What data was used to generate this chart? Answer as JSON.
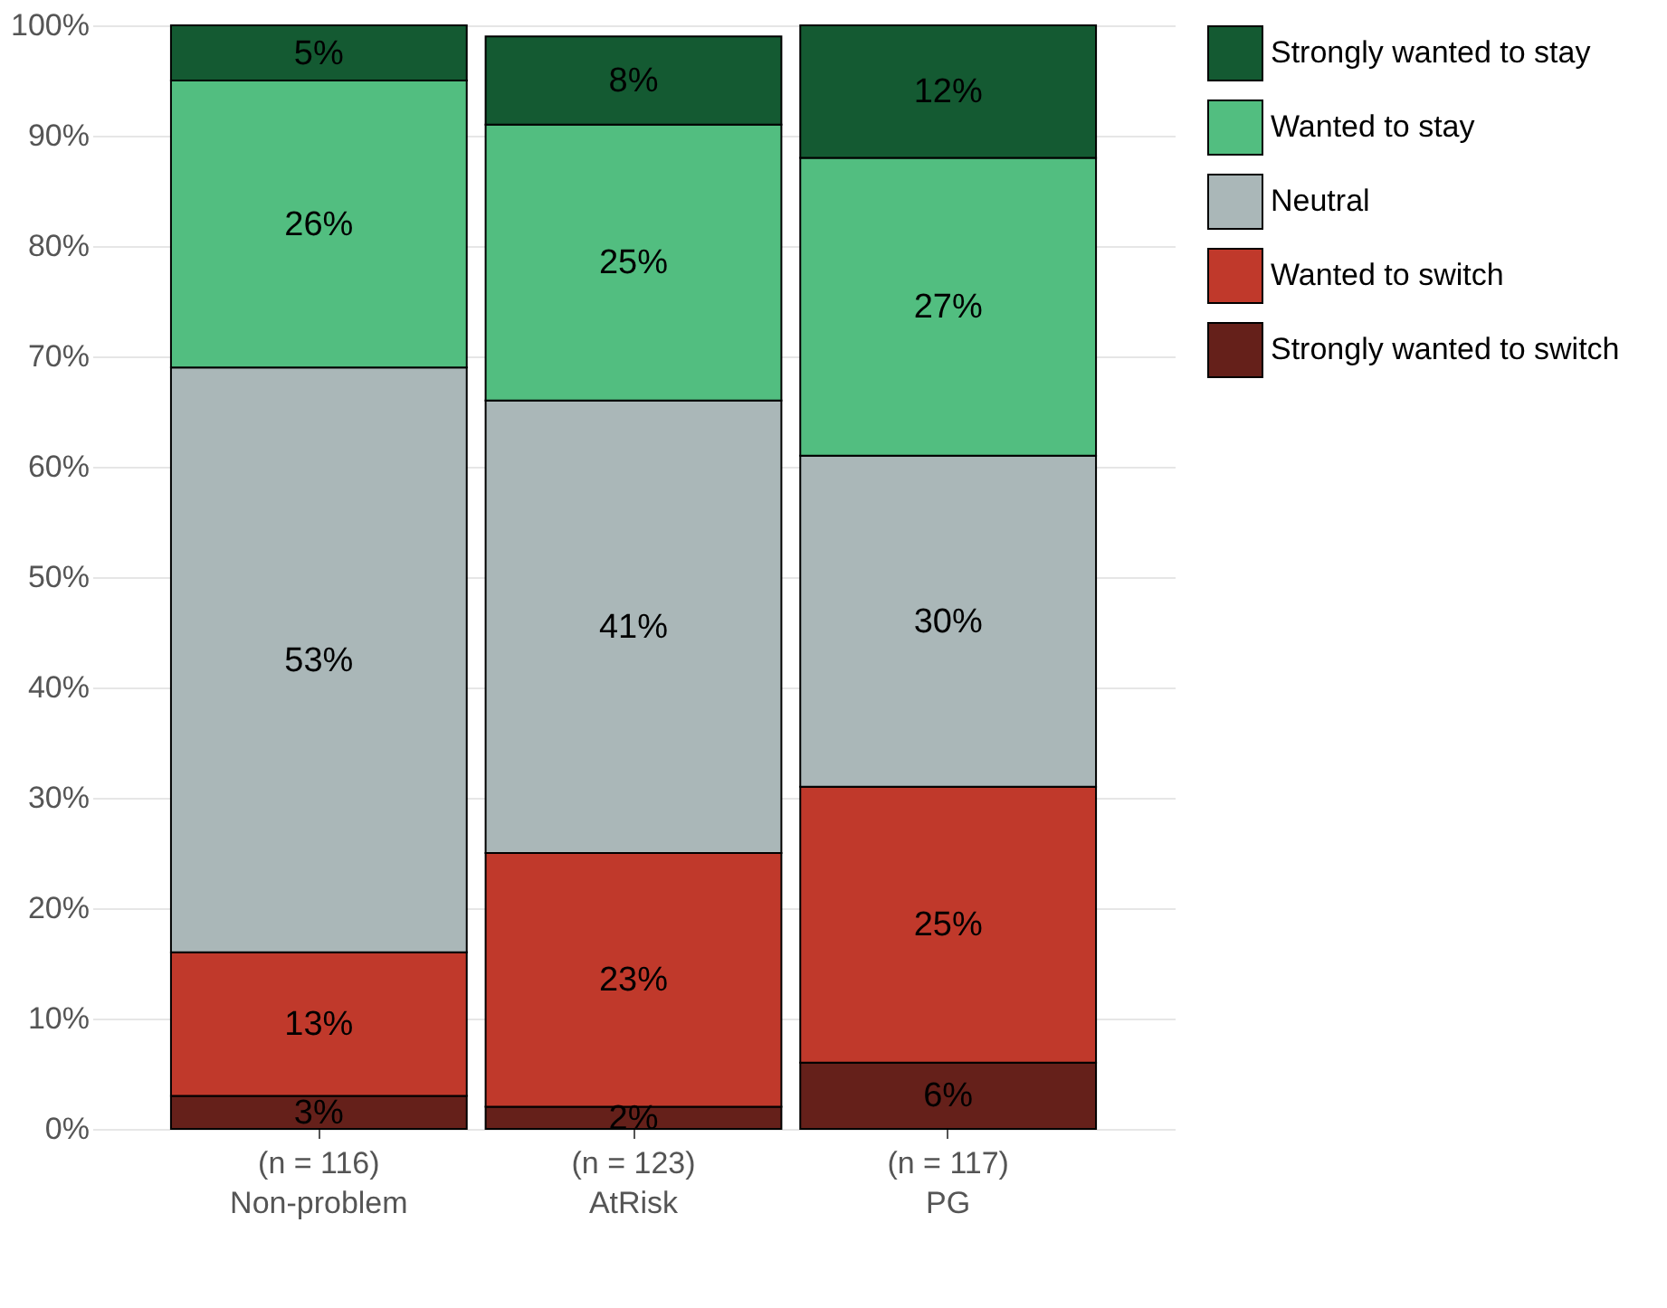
{
  "chart_data": {
    "type": "bar",
    "stacked": true,
    "categories": [
      "Non-problem",
      "AtRisk",
      "PG"
    ],
    "series": [
      {
        "name": "Strongly wanted to switch",
        "color": "#65201a",
        "values": [
          3,
          2,
          6
        ],
        "value_labels": [
          "3%",
          "2%",
          "6%"
        ]
      },
      {
        "name": "Wanted to switch",
        "color": "#c0392b",
        "values": [
          13,
          23,
          25
        ],
        "value_labels": [
          "13%",
          "23%",
          "25%"
        ]
      },
      {
        "name": "Neutral",
        "color": "#aab7b8",
        "values": [
          53,
          41,
          30
        ],
        "value_labels": [
          "53%",
          "41%",
          "30%"
        ]
      },
      {
        "name": "Wanted to stay",
        "color": "#52be80",
        "values": [
          26,
          25,
          27
        ],
        "value_labels": [
          "26%",
          "25%",
          "27%"
        ]
      },
      {
        "name": "Strongly wanted to stay",
        "color": "#145a32",
        "values": [
          5,
          8,
          12
        ],
        "value_labels": [
          "5%",
          "8%",
          "12%"
        ]
      }
    ],
    "ylim": [
      0,
      100
    ],
    "yticks": [
      {
        "value": 0,
        "label": "0%"
      },
      {
        "value": 10,
        "label": "10%"
      },
      {
        "value": 20,
        "label": "20%"
      },
      {
        "value": 30,
        "label": "30%"
      },
      {
        "value": 40,
        "label": "40%"
      },
      {
        "value": 50,
        "label": "50%"
      },
      {
        "value": 60,
        "label": "60%"
      },
      {
        "value": 70,
        "label": "70%"
      },
      {
        "value": 80,
        "label": "80%"
      },
      {
        "value": 90,
        "label": "90%"
      },
      {
        "value": 100,
        "label": "100%"
      }
    ],
    "grid": "y",
    "legend": "right",
    "annotations": [
      "(n = 116)",
      "(n = 123)",
      "(n = 117)"
    ]
  }
}
